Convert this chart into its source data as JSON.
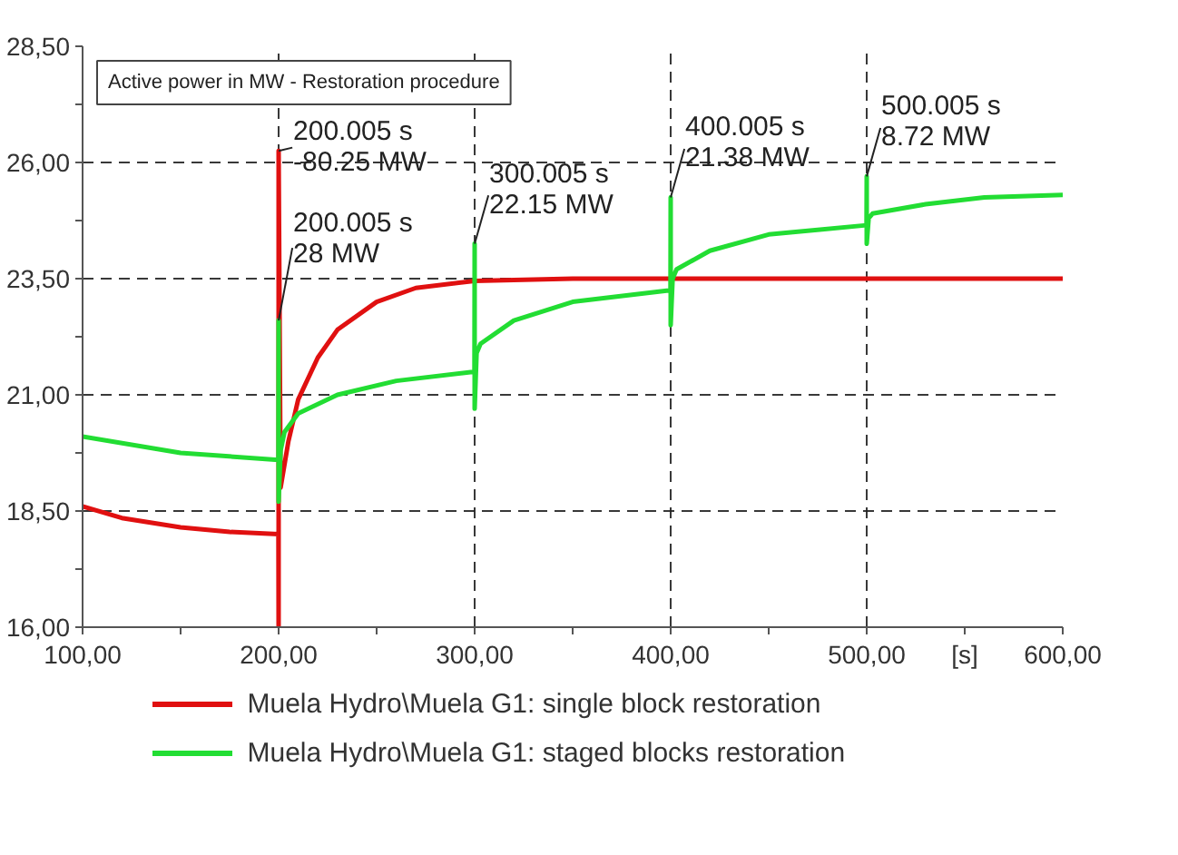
{
  "chart_data": {
    "type": "line",
    "title": "Active power in MW - Restoration procedure",
    "xlabel": "[s]",
    "xlim": [
      100,
      600
    ],
    "ylim": [
      16,
      28.5
    ],
    "xticks": [
      {
        "value": 100,
        "label": "100,00"
      },
      {
        "value": 200,
        "label": "200,00"
      },
      {
        "value": 300,
        "label": "300,00"
      },
      {
        "value": 400,
        "label": "400,00"
      },
      {
        "value": 500,
        "label": "500,00"
      },
      {
        "value": 600,
        "label": "600,00"
      }
    ],
    "yticks": [
      {
        "value": 16,
        "label": "16,00"
      },
      {
        "value": 18.5,
        "label": "18,50"
      },
      {
        "value": 21,
        "label": "21,00"
      },
      {
        "value": 23.5,
        "label": "23,50"
      },
      {
        "value": 26,
        "label": "26,00"
      },
      {
        "value": 28.5,
        "label": "28,50"
      }
    ],
    "grid": true,
    "legend": "bottom",
    "line_style": "solid",
    "marker": "none",
    "series": [
      {
        "name": "Muela Hydro\\Muela G1: single block restoration",
        "color": "#e01010",
        "x": [
          100,
          120,
          150,
          175,
          199.9,
          200,
          200.005,
          201,
          205,
          210,
          220,
          230,
          250,
          270,
          300,
          350,
          400,
          600
        ],
        "values": [
          18.6,
          18.35,
          18.15,
          18.05,
          18.0,
          16.0,
          26.25,
          19.0,
          20.0,
          20.9,
          21.8,
          22.4,
          23.0,
          23.3,
          23.45,
          23.5,
          23.5,
          23.5
        ]
      },
      {
        "name": "Muela Hydro\\Muela G1: staged blocks restoration",
        "color": "#22dd33",
        "x": [
          100,
          150,
          199.9,
          200,
          200.005,
          201,
          203,
          210,
          230,
          260,
          299.9,
          300,
          300.005,
          301,
          303,
          320,
          350,
          399.9,
          400,
          400.005,
          401,
          403,
          420,
          450,
          499.9,
          500,
          500.005,
          501,
          503,
          530,
          560,
          600
        ],
        "values": [
          20.1,
          19.75,
          19.6,
          22.6,
          18.7,
          19.8,
          20.2,
          20.6,
          21.0,
          21.3,
          21.5,
          24.25,
          20.7,
          21.9,
          22.1,
          22.6,
          23.0,
          23.25,
          25.25,
          22.5,
          23.5,
          23.7,
          24.1,
          24.45,
          24.65,
          25.7,
          24.25,
          24.8,
          24.9,
          25.1,
          25.25,
          25.3
        ]
      }
    ],
    "annotations": [
      {
        "text": "200.005 s\n-80.25 MW",
        "x": 200.005,
        "y": 26.25
      },
      {
        "text": "200.005 s\n28 MW",
        "x": 200.005,
        "y": 22.6
      },
      {
        "text": "300.005 s\n22.15 MW",
        "x": 300.005,
        "y": 24.25
      },
      {
        "text": "400.005 s\n21.38 MW",
        "x": 400.005,
        "y": 25.25
      },
      {
        "text": "500.005 s\n8.72 MW",
        "x": 500.005,
        "y": 25.7
      }
    ]
  }
}
